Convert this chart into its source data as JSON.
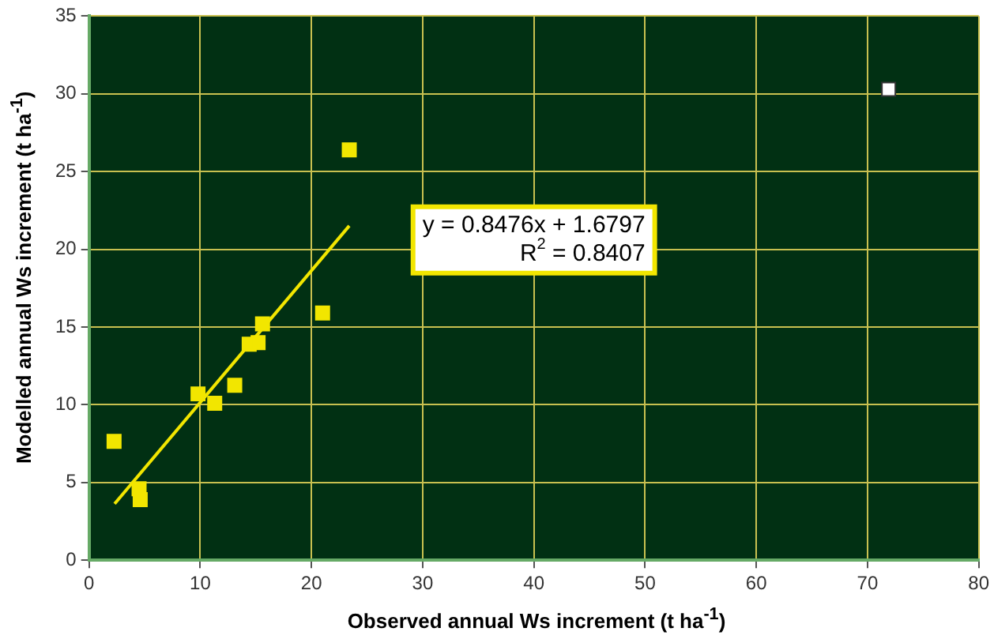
{
  "chart_data": {
    "type": "scatter",
    "xlabel": "Observed annual Ws increment (t ha$^{-1}$)",
    "ylabel": "Modelled annual Ws increment (t ha$^{-1}$)",
    "series": [
      {
        "color": "#f2e600",
        "x": [
          2.25,
          4.5,
          4.6,
          9.8,
          11.3,
          13.1,
          14.4,
          15.2,
          15.6,
          21.0,
          23.4
        ],
        "values": [
          7.65,
          4.6,
          3.9,
          10.7,
          10.1,
          11.25,
          13.9,
          14.0,
          15.2,
          15.9,
          26.4
        ]
      },
      {
        "color": "#ffffff",
        "x": [
          71.9
        ],
        "values": [
          30.3
        ]
      },
      {
        "type": "line",
        "color": "#f2e600",
        "marker": "none",
        "x": [
          2.3,
          23.4
        ],
        "values": [
          3.63,
          21.51
        ]
      }
    ],
    "annotations": [
      "y = 0.8476x + 1.6797\nR$^{2}$ = 0.8407"
    ],
    "xlim": [
      0,
      80
    ],
    "xticks": [
      0,
      10,
      20,
      30,
      40,
      50,
      60,
      70,
      80
    ],
    "ylim": [
      0,
      35
    ],
    "yticks": [
      0,
      5,
      10,
      15,
      20,
      25,
      30,
      35
    ],
    "grid": true,
    "legend": false,
    "marker": "square"
  }
}
